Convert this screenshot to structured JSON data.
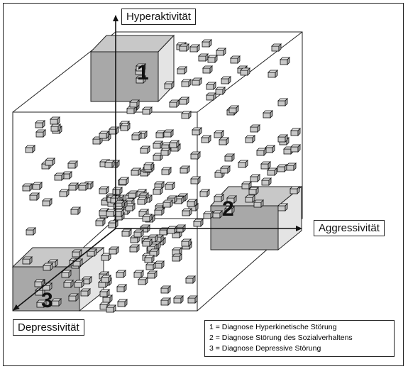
{
  "axes": {
    "y_label": "Hyperaktivität",
    "x_label": "Aggressivität",
    "z_label": "Depressivität"
  },
  "regions": [
    {
      "number": "1"
    },
    {
      "number": "2"
    },
    {
      "number": "3"
    }
  ],
  "legend": [
    "1 = Diagnose Hyperkinetische Störung",
    "2 = Diagnose Störung des Sozialverhaltens",
    "3 = Diagnose Depressive Störung"
  ],
  "colors": {
    "face_light": "#e4e4e4",
    "face_dark": "#a8a8a8",
    "face_mid": "#c8c8c8",
    "line": "#111111"
  }
}
